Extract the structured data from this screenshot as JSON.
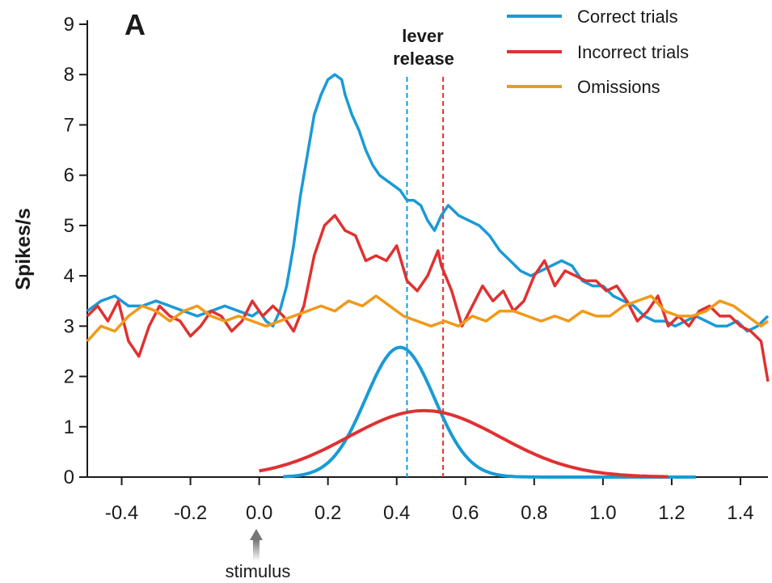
{
  "chart_data": {
    "type": "line",
    "panel_label": "A",
    "ylabel": "Spikes/s",
    "xlim": [
      -0.5,
      1.48
    ],
    "ylim": [
      0,
      9
    ],
    "xticks": [
      -0.4,
      -0.2,
      0.0,
      0.2,
      0.4,
      0.6,
      0.8,
      1.0,
      1.2,
      1.4
    ],
    "xtick_labels": [
      "-0.4",
      "-0.2",
      "0.0",
      "0.2",
      "0.4",
      "0.6",
      "0.8",
      "1.0",
      "1.2",
      "1.4"
    ],
    "yticks": [
      0,
      1,
      2,
      3,
      4,
      5,
      6,
      7,
      8,
      9
    ],
    "ytick_labels": [
      "0",
      "1",
      "2",
      "3",
      "4",
      "5",
      "6",
      "7",
      "8",
      "9"
    ],
    "grid": false,
    "legend_position": "top-right",
    "series": [
      {
        "name": "Correct trials",
        "color": "#1a9ad6",
        "x": [
          -0.5,
          -0.46,
          -0.42,
          -0.38,
          -0.34,
          -0.3,
          -0.26,
          -0.22,
          -0.18,
          -0.14,
          -0.1,
          -0.06,
          -0.02,
          0.0,
          0.02,
          0.04,
          0.06,
          0.08,
          0.1,
          0.12,
          0.14,
          0.16,
          0.18,
          0.2,
          0.22,
          0.24,
          0.25,
          0.27,
          0.29,
          0.31,
          0.33,
          0.35,
          0.37,
          0.39,
          0.41,
          0.43,
          0.45,
          0.47,
          0.49,
          0.51,
          0.53,
          0.55,
          0.58,
          0.61,
          0.64,
          0.67,
          0.7,
          0.73,
          0.76,
          0.79,
          0.82,
          0.85,
          0.88,
          0.91,
          0.94,
          0.97,
          1.0,
          1.03,
          1.06,
          1.09,
          1.12,
          1.15,
          1.18,
          1.21,
          1.24,
          1.27,
          1.3,
          1.33,
          1.36,
          1.39,
          1.42,
          1.45,
          1.48
        ],
        "values": [
          3.3,
          3.5,
          3.6,
          3.4,
          3.4,
          3.5,
          3.4,
          3.3,
          3.2,
          3.3,
          3.4,
          3.3,
          3.2,
          3.3,
          3.1,
          3.0,
          3.3,
          3.8,
          4.6,
          5.6,
          6.4,
          7.2,
          7.6,
          7.9,
          8.0,
          7.9,
          7.6,
          7.2,
          6.9,
          6.5,
          6.2,
          6.0,
          5.9,
          5.8,
          5.7,
          5.5,
          5.5,
          5.4,
          5.1,
          4.9,
          5.2,
          5.4,
          5.2,
          5.1,
          5.0,
          4.8,
          4.5,
          4.3,
          4.1,
          4.0,
          4.1,
          4.2,
          4.3,
          4.2,
          3.9,
          3.8,
          3.8,
          3.6,
          3.5,
          3.4,
          3.2,
          3.1,
          3.1,
          3.0,
          3.1,
          3.2,
          3.1,
          3.0,
          3.0,
          3.1,
          2.9,
          3.0,
          3.2
        ]
      },
      {
        "name": "Incorrect trials",
        "color": "#e03131",
        "x": [
          -0.5,
          -0.47,
          -0.44,
          -0.41,
          -0.38,
          -0.35,
          -0.32,
          -0.29,
          -0.26,
          -0.23,
          -0.2,
          -0.17,
          -0.14,
          -0.11,
          -0.08,
          -0.05,
          -0.02,
          0.01,
          0.04,
          0.07,
          0.1,
          0.13,
          0.16,
          0.19,
          0.22,
          0.25,
          0.28,
          0.31,
          0.34,
          0.37,
          0.4,
          0.43,
          0.46,
          0.49,
          0.52,
          0.53,
          0.56,
          0.59,
          0.62,
          0.65,
          0.68,
          0.71,
          0.74,
          0.77,
          0.8,
          0.83,
          0.86,
          0.89,
          0.92,
          0.95,
          0.98,
          1.01,
          1.04,
          1.07,
          1.1,
          1.13,
          1.16,
          1.19,
          1.22,
          1.25,
          1.28,
          1.31,
          1.34,
          1.37,
          1.4,
          1.43,
          1.46,
          1.48
        ],
        "values": [
          3.2,
          3.4,
          3.1,
          3.5,
          2.7,
          2.4,
          3.0,
          3.4,
          3.2,
          3.1,
          2.8,
          3.0,
          3.3,
          3.2,
          2.9,
          3.1,
          3.5,
          3.2,
          3.4,
          3.2,
          2.9,
          3.4,
          4.4,
          5.0,
          5.2,
          4.9,
          4.8,
          4.3,
          4.4,
          4.3,
          4.6,
          3.9,
          3.7,
          4.0,
          4.5,
          4.2,
          3.7,
          3.0,
          3.4,
          3.8,
          3.5,
          3.7,
          3.3,
          3.5,
          4.0,
          4.3,
          3.8,
          4.1,
          4.0,
          3.9,
          3.9,
          3.7,
          3.8,
          3.5,
          3.1,
          3.3,
          3.6,
          3.0,
          3.2,
          3.0,
          3.3,
          3.4,
          3.2,
          3.2,
          3.0,
          2.9,
          2.7,
          1.9
        ]
      },
      {
        "name": "Omissions",
        "color": "#f09a1a",
        "x": [
          -0.5,
          -0.46,
          -0.42,
          -0.38,
          -0.34,
          -0.3,
          -0.26,
          -0.22,
          -0.18,
          -0.14,
          -0.1,
          -0.06,
          -0.02,
          0.02,
          0.06,
          0.1,
          0.14,
          0.18,
          0.22,
          0.26,
          0.3,
          0.34,
          0.38,
          0.42,
          0.46,
          0.5,
          0.54,
          0.58,
          0.62,
          0.66,
          0.7,
          0.74,
          0.78,
          0.82,
          0.86,
          0.9,
          0.94,
          0.98,
          1.02,
          1.06,
          1.1,
          1.14,
          1.18,
          1.22,
          1.26,
          1.3,
          1.34,
          1.38,
          1.42,
          1.46,
          1.48
        ],
        "values": [
          2.7,
          3.0,
          2.9,
          3.2,
          3.4,
          3.3,
          3.1,
          3.3,
          3.4,
          3.2,
          3.1,
          3.2,
          3.1,
          3.0,
          3.1,
          3.2,
          3.3,
          3.4,
          3.3,
          3.5,
          3.4,
          3.6,
          3.4,
          3.2,
          3.1,
          3.0,
          3.1,
          3.0,
          3.2,
          3.1,
          3.3,
          3.3,
          3.2,
          3.1,
          3.2,
          3.1,
          3.3,
          3.2,
          3.2,
          3.4,
          3.5,
          3.6,
          3.3,
          3.2,
          3.2,
          3.3,
          3.5,
          3.4,
          3.2,
          3.0,
          3.1
        ]
      }
    ],
    "distributions": [
      {
        "color": "#1a9ad6",
        "mean": 0.41,
        "sd": 0.1,
        "peak": 2.58,
        "x_start": 0.07,
        "x_end": 1.27
      },
      {
        "color": "#e03131",
        "mean": 0.48,
        "sd": 0.22,
        "peak": 1.32,
        "x_start": 0.0,
        "x_end": 1.19
      }
    ],
    "vlines": [
      {
        "x": 0.43,
        "color": "#1a9ad6",
        "style": "dashed"
      },
      {
        "x": 0.535,
        "color": "#e03131",
        "style": "dashed"
      }
    ],
    "annotations": {
      "lever_release": [
        "lever",
        "release"
      ],
      "stimulus": "stimulus"
    }
  }
}
